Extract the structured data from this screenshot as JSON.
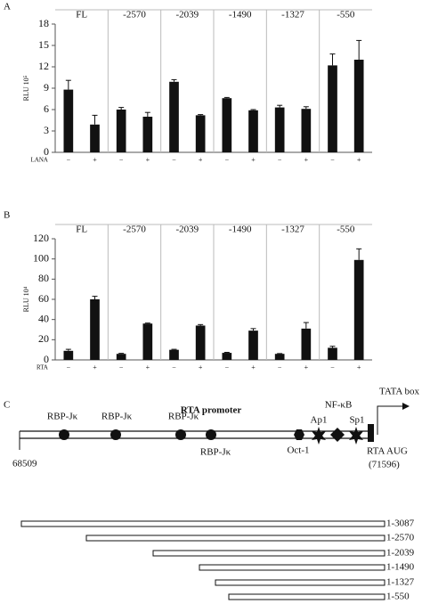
{
  "chart_data": [
    {
      "type": "bar",
      "panel": "A",
      "ylabel": "RLU 10⁵",
      "treatment": "LANA",
      "groups": [
        "FL",
        "-2570",
        "-2039",
        "-1490",
        "-1327",
        "-550"
      ],
      "categories": [
        "−",
        "+",
        "−",
        "+",
        "−",
        "+",
        "−",
        "+",
        "−",
        "+",
        "−",
        "+"
      ],
      "values": [
        8.8,
        3.9,
        6.0,
        5.0,
        9.9,
        5.2,
        7.6,
        5.9,
        6.3,
        6.1,
        12.2,
        13.0
      ],
      "errors": [
        1.3,
        1.3,
        0.3,
        0.6,
        0.3,
        0.1,
        0.1,
        0.1,
        0.3,
        0.3,
        1.6,
        2.7
      ],
      "color": "#111111",
      "ylim": [
        0,
        18
      ],
      "yticks": [
        0,
        3,
        6,
        9,
        12,
        15,
        18
      ]
    },
    {
      "type": "bar",
      "panel": "B",
      "ylabel": "RLU 10⁴",
      "treatment": "RTA",
      "groups": [
        "FL",
        "-2570",
        "-2039",
        "-1490",
        "-1327",
        "-550"
      ],
      "categories": [
        "−",
        "+",
        "−",
        "+",
        "−",
        "+",
        "−",
        "+",
        "−",
        "+",
        "−",
        "+"
      ],
      "values": [
        9,
        60,
        6,
        36,
        10,
        34,
        7,
        29,
        6,
        31,
        12,
        99
      ],
      "errors": [
        1.5,
        3,
        0.5,
        0.5,
        0.5,
        1,
        0.5,
        2,
        0.3,
        6,
        1.5,
        11
      ],
      "color": "#111111",
      "ylim": [
        0,
        120
      ],
      "yticks": [
        0,
        20,
        40,
        60,
        80,
        100,
        120
      ]
    }
  ],
  "diagram": {
    "panel": "C",
    "title": "RTA promoter",
    "sites": [
      "RBP-Jκ",
      "RBP-Jκ",
      "RBP-Jκ",
      "RBP-Jκ",
      "Oct-1",
      "Ap1",
      "NF-κB",
      "Sp1",
      "TATA box"
    ],
    "start": "68509",
    "end": [
      "RTA AUG",
      "(71596)"
    ],
    "constructs": [
      "1-3087",
      "1-2570",
      "1-2039",
      "1-1490",
      "1-1327",
      "1-550"
    ]
  }
}
